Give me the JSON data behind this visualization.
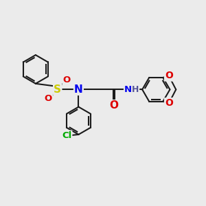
{
  "bg_color": "#ebebeb",
  "bond_color": "#1a1a1a",
  "bond_width": 1.5,
  "atoms": {
    "S": {
      "color": "#cccc00"
    },
    "N": {
      "color": "#0000ee"
    },
    "O": {
      "color": "#dd0000"
    },
    "Cl": {
      "color": "#00aa00"
    },
    "H": {
      "color": "#555599"
    }
  },
  "layout": {
    "xlim": [
      0,
      12
    ],
    "ylim": [
      0,
      10
    ]
  }
}
